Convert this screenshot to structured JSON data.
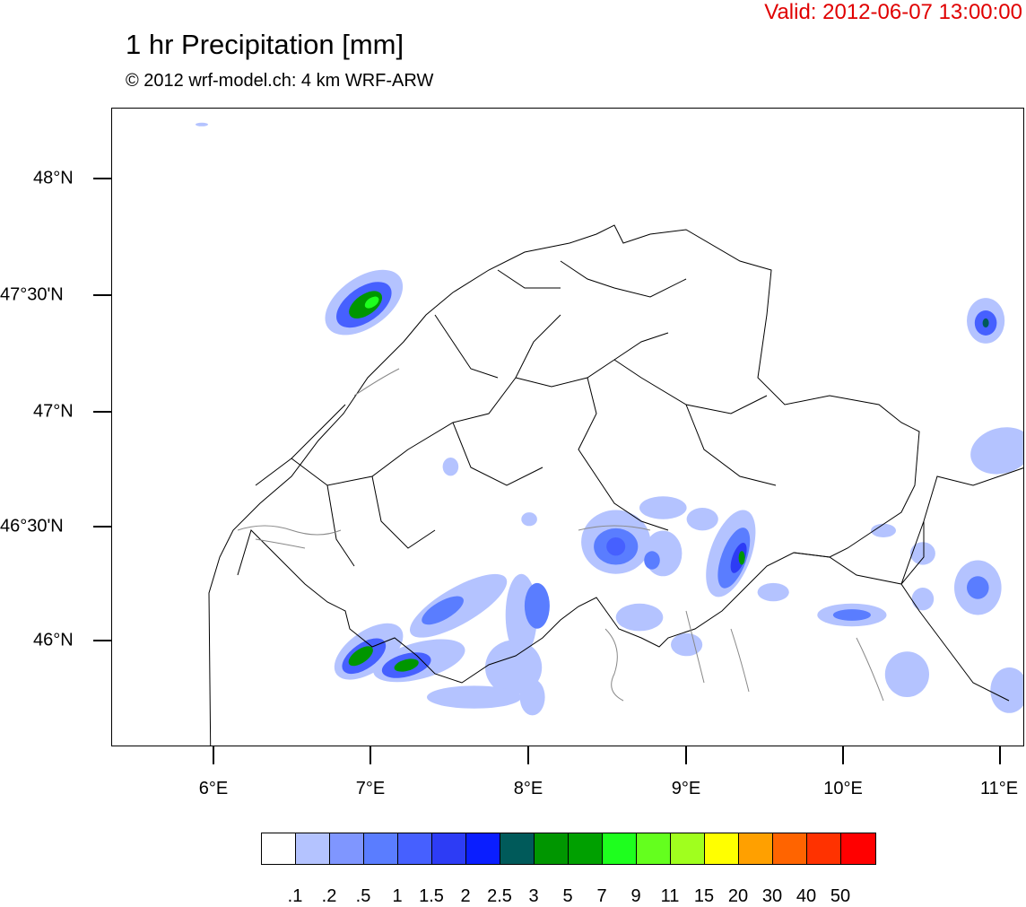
{
  "header": {
    "valid": "Valid: 2012-06-07 13:00:00",
    "title": "1 hr Precipitation [mm]",
    "subtitle": "© 2012 wrf-model.ch: 4 km WRF-ARW"
  },
  "axes": {
    "lat_labels": [
      "48°N",
      "47°30'N",
      "47°N",
      "46°30'N",
      "46°N"
    ],
    "lon_labels": [
      "6°E",
      "7°E",
      "8°E",
      "9°E",
      "10°E",
      "11°E"
    ],
    "lat_values": [
      48.0,
      47.5,
      47.0,
      46.5,
      46.0
    ],
    "lon_values": [
      6,
      7,
      8,
      9,
      10,
      11
    ],
    "lon_range": [
      5.35,
      11.15
    ],
    "lat_range": [
      45.5,
      48.3
    ]
  },
  "legend": {
    "labels": [
      ".1",
      ".2",
      ".5",
      "1",
      "1.5",
      "2",
      "2.5",
      "3",
      "5",
      "7",
      "9",
      "11",
      "15",
      "20",
      "30",
      "40",
      "50"
    ],
    "colors": [
      "#ffffff",
      "#b4c3ff",
      "#7f96ff",
      "#5a7dff",
      "#4660ff",
      "#2d3cf5",
      "#0a1eff",
      "#005a5a",
      "#009600",
      "#00a000",
      "#1eff1e",
      "#64ff1e",
      "#a0ff1e",
      "#ffff00",
      "#ffa000",
      "#ff6400",
      "#ff3200",
      "#ff0000"
    ]
  },
  "precip_cells": [
    {
      "lon": 6.95,
      "lat": 47.45,
      "rx": 0.28,
      "ry": 0.11,
      "rot": -35,
      "level": 1
    },
    {
      "lon": 6.95,
      "lat": 47.44,
      "rx": 0.2,
      "ry": 0.075,
      "rot": -35,
      "level": 4
    },
    {
      "lon": 6.96,
      "lat": 47.44,
      "rx": 0.12,
      "ry": 0.045,
      "rot": -35,
      "level": 8
    },
    {
      "lon": 7.0,
      "lat": 47.45,
      "rx": 0.05,
      "ry": 0.02,
      "rot": -35,
      "level": 10
    },
    {
      "lon": 6.98,
      "lat": 45.92,
      "rx": 0.25,
      "ry": 0.09,
      "rot": -35,
      "level": 1
    },
    {
      "lon": 6.95,
      "lat": 45.9,
      "rx": 0.16,
      "ry": 0.055,
      "rot": -35,
      "level": 4
    },
    {
      "lon": 6.93,
      "lat": 45.9,
      "rx": 0.09,
      "ry": 0.03,
      "rot": -35,
      "level": 8
    },
    {
      "lon": 7.3,
      "lat": 45.88,
      "rx": 0.3,
      "ry": 0.08,
      "rot": -15,
      "level": 1
    },
    {
      "lon": 7.22,
      "lat": 45.86,
      "rx": 0.16,
      "ry": 0.05,
      "rot": -15,
      "level": 4
    },
    {
      "lon": 7.22,
      "lat": 45.86,
      "rx": 0.08,
      "ry": 0.025,
      "rot": -15,
      "level": 8
    },
    {
      "lon": 7.55,
      "lat": 46.12,
      "rx": 0.35,
      "ry": 0.08,
      "rot": -30,
      "level": 1
    },
    {
      "lon": 7.45,
      "lat": 46.1,
      "rx": 0.15,
      "ry": 0.04,
      "rot": -30,
      "level": 3
    },
    {
      "lon": 7.9,
      "lat": 45.85,
      "rx": 0.18,
      "ry": 0.12,
      "rot": 0,
      "level": 1
    },
    {
      "lon": 7.95,
      "lat": 46.08,
      "rx": 0.1,
      "ry": 0.18,
      "rot": 0,
      "level": 1
    },
    {
      "lon": 8.05,
      "lat": 46.12,
      "rx": 0.08,
      "ry": 0.1,
      "rot": 0,
      "level": 3
    },
    {
      "lon": 7.65,
      "lat": 45.72,
      "rx": 0.3,
      "ry": 0.05,
      "rot": 0,
      "level": 1
    },
    {
      "lon": 8.02,
      "lat": 45.72,
      "rx": 0.08,
      "ry": 0.08,
      "rot": 0,
      "level": 1
    },
    {
      "lon": 8.55,
      "lat": 46.4,
      "rx": 0.22,
      "ry": 0.14,
      "rot": 0,
      "level": 1
    },
    {
      "lon": 8.55,
      "lat": 46.38,
      "rx": 0.14,
      "ry": 0.08,
      "rot": 0,
      "level": 3
    },
    {
      "lon": 8.55,
      "lat": 46.38,
      "rx": 0.06,
      "ry": 0.04,
      "rot": 0,
      "level": 4
    },
    {
      "lon": 8.85,
      "lat": 46.35,
      "rx": 0.12,
      "ry": 0.1,
      "rot": 0,
      "level": 1
    },
    {
      "lon": 8.78,
      "lat": 46.32,
      "rx": 0.05,
      "ry": 0.04,
      "rot": 0,
      "level": 3
    },
    {
      "lon": 8.85,
      "lat": 46.55,
      "rx": 0.15,
      "ry": 0.05,
      "rot": 0,
      "level": 1
    },
    {
      "lon": 9.28,
      "lat": 46.35,
      "rx": 0.13,
      "ry": 0.2,
      "rot": 20,
      "level": 1
    },
    {
      "lon": 9.3,
      "lat": 46.33,
      "rx": 0.08,
      "ry": 0.14,
      "rot": 20,
      "level": 3
    },
    {
      "lon": 9.33,
      "lat": 46.33,
      "rx": 0.04,
      "ry": 0.07,
      "rot": 20,
      "level": 5
    },
    {
      "lon": 9.35,
      "lat": 46.33,
      "rx": 0.02,
      "ry": 0.03,
      "rot": 0,
      "level": 8
    },
    {
      "lon": 9.1,
      "lat": 46.5,
      "rx": 0.1,
      "ry": 0.05,
      "rot": 0,
      "level": 1
    },
    {
      "lon": 8.7,
      "lat": 46.07,
      "rx": 0.15,
      "ry": 0.06,
      "rot": 0,
      "level": 1
    },
    {
      "lon": 9.0,
      "lat": 45.95,
      "rx": 0.1,
      "ry": 0.05,
      "rot": 0,
      "level": 1
    },
    {
      "lon": 10.9,
      "lat": 47.37,
      "rx": 0.12,
      "ry": 0.1,
      "rot": 0,
      "level": 1
    },
    {
      "lon": 10.9,
      "lat": 47.36,
      "rx": 0.07,
      "ry": 0.055,
      "rot": 0,
      "level": 4
    },
    {
      "lon": 10.9,
      "lat": 47.36,
      "rx": 0.02,
      "ry": 0.02,
      "rot": 0,
      "level": 7
    },
    {
      "lon": 10.05,
      "lat": 46.08,
      "rx": 0.22,
      "ry": 0.05,
      "rot": 0,
      "level": 1
    },
    {
      "lon": 10.05,
      "lat": 46.08,
      "rx": 0.12,
      "ry": 0.025,
      "rot": 0,
      "level": 3
    },
    {
      "lon": 10.4,
      "lat": 45.82,
      "rx": 0.14,
      "ry": 0.1,
      "rot": 0,
      "level": 1
    },
    {
      "lon": 10.85,
      "lat": 46.2,
      "rx": 0.15,
      "ry": 0.12,
      "rot": 0,
      "level": 1
    },
    {
      "lon": 10.85,
      "lat": 46.2,
      "rx": 0.07,
      "ry": 0.05,
      "rot": 0,
      "level": 3
    },
    {
      "lon": 11.0,
      "lat": 46.8,
      "rx": 0.2,
      "ry": 0.1,
      "rot": -15,
      "level": 1
    },
    {
      "lon": 11.05,
      "lat": 45.75,
      "rx": 0.12,
      "ry": 0.1,
      "rot": 0,
      "level": 1
    },
    {
      "lon": 10.5,
      "lat": 46.35,
      "rx": 0.08,
      "ry": 0.05,
      "rot": 0,
      "level": 1
    },
    {
      "lon": 10.5,
      "lat": 46.15,
      "rx": 0.07,
      "ry": 0.05,
      "rot": 0,
      "level": 1
    },
    {
      "lon": 10.25,
      "lat": 46.45,
      "rx": 0.08,
      "ry": 0.03,
      "rot": 0,
      "level": 1
    },
    {
      "lon": 9.55,
      "lat": 46.18,
      "rx": 0.1,
      "ry": 0.04,
      "rot": 0,
      "level": 1
    },
    {
      "lon": 8.0,
      "lat": 46.5,
      "rx": 0.05,
      "ry": 0.03,
      "rot": 0,
      "level": 1
    },
    {
      "lon": 7.5,
      "lat": 46.73,
      "rx": 0.05,
      "ry": 0.04,
      "rot": 0,
      "level": 1
    },
    {
      "lon": 5.92,
      "lat": 48.23,
      "rx": 0.04,
      "ry": 0.008,
      "rot": 0,
      "level": 1
    }
  ]
}
